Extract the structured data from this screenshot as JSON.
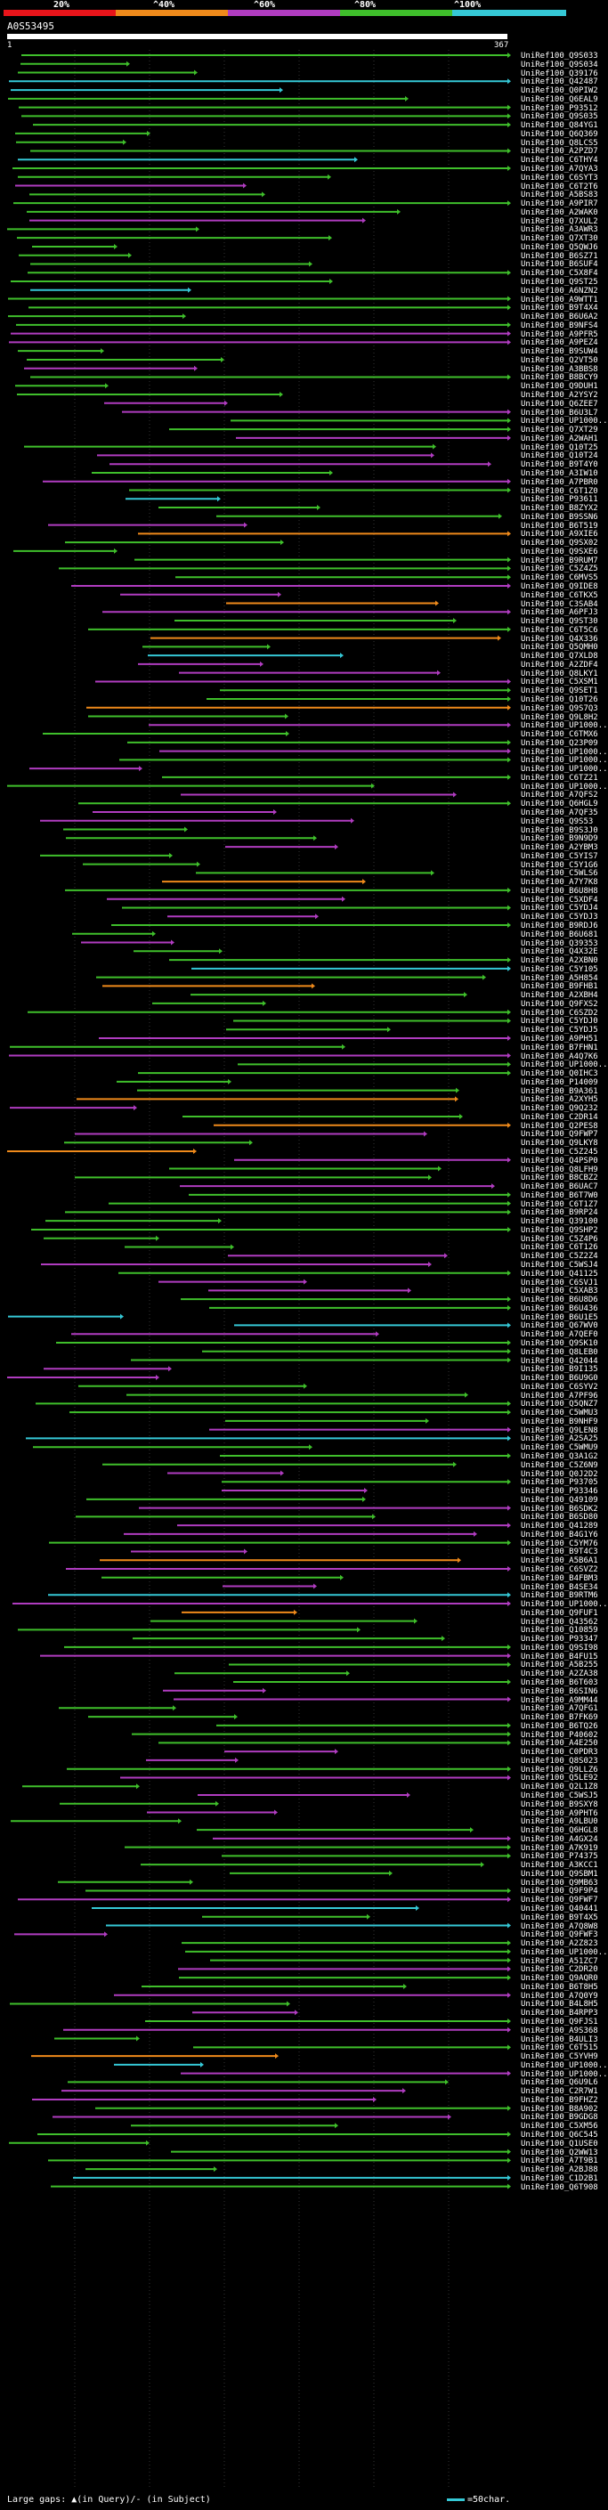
{
  "legend": {
    "labels": [
      {
        "text": "20%"
      },
      {
        "text": "^40%"
      },
      {
        "text": "^60%"
      },
      {
        "text": "^80%"
      },
      {
        "text": "^100%"
      }
    ],
    "colors": [
      "#e8141a",
      "#ef8a1b",
      "#b03cc0",
      "#3fbf2b",
      "#35c8d6"
    ]
  },
  "query": {
    "id": "A0S53495",
    "start": "1",
    "end": "367"
  },
  "footer": {
    "gaps_text": "Large gaps: ▲(in Query)/- (in Subject)",
    "scale_text": "=50char."
  },
  "hits": [
    "UniRef100_Q9S033",
    "UniRef100_Q9S034",
    "UniRef100_Q39176",
    "UniRef100_Q42487",
    "UniRef100_Q0PIW2",
    "UniRef100_Q6EAL9",
    "UniRef100_P93512",
    "UniRef100_Q9S035",
    "UniRef100_Q84YG1",
    "UniRef100_Q6Q369",
    "UniRef100_Q8LCS5",
    "UniRef100_A2PZD7",
    "UniRef100_C6THY4",
    "UniRef100_A7QYA3",
    "UniRef100_C6SYT3",
    "UniRef100_C6T2T6",
    "UniRef100_A5BS83",
    "UniRef100_A9PIR7",
    "UniRef100_A2WAK0",
    "UniRef100_Q7XUL2",
    "UniRef100_A3AWR3",
    "UniRef100_Q7XT30",
    "UniRef100_Q5QWJ6",
    "UniRef100_B6SZ71",
    "UniRef100_B6SUF4",
    "UniRef100_C5X8F4",
    "UniRef100_Q9ST25",
    "UniRef100_A6NZN2",
    "UniRef100_A9WTT1",
    "UniRef100_B9T4X4",
    "UniRef100_B6U6A2",
    "UniRef100_B9NFS4",
    "UniRef100_A9PFR5",
    "UniRef100_A9PEZ4",
    "UniRef100_B9SUW4",
    "UniRef100_Q2VT50",
    "UniRef100_A3BBS8",
    "UniRef100_B8BCY9",
    "UniRef100_Q9DUH1",
    "UniRef100_A2YSY2",
    "UniRef100_Q6ZEE7",
    "UniRef100_B6U3L7",
    "UniRef100_UP1000..",
    "UniRef100_Q7XT29",
    "UniRef100_A2WAH1",
    "UniRef100_Q10T25",
    "UniRef100_Q10T24",
    "UniRef100_B9T4Y0",
    "UniRef100_A3IW10",
    "UniRef100_A7PBR0",
    "UniRef100_C6T1Z0",
    "UniRef100_P93611",
    "UniRef100_B8ZYX2",
    "UniRef100_B9SSN6",
    "UniRef100_B6T519",
    "UniRef100_A9XIE6",
    "UniRef100_Q9SX02",
    "UniRef100_Q9SXE6",
    "UniRef100_B9RUM7",
    "UniRef100_C5Z4Z5",
    "UniRef100_C6MVS5",
    "UniRef100_Q9IDE8",
    "UniRef100_C6TKX5",
    "UniRef100_C3SAB4",
    "UniRef100_A6PFJ3",
    "UniRef100_Q9ST30",
    "UniRef100_C6T5C6",
    "UniRef100_Q4X336",
    "UniRef100_Q5QMH0",
    "UniRef100_Q7XLD8",
    "UniRef100_A2ZDF4",
    "UniRef100_Q8LKY1",
    "UniRef100_C5XSM1",
    "UniRef100_Q9SET1",
    "UniRef100_Q10T26",
    "UniRef100_Q9S7Q3",
    "UniRef100_Q9L8H2",
    "UniRef100_UP1000..",
    "UniRef100_C6TMX6",
    "UniRef100_Q23P09",
    "UniRef100_UP1000..",
    "UniRef100_UP1000..",
    "UniRef100_UP1000..",
    "UniRef100_C6TZ21",
    "UniRef100_UP1000..",
    "UniRef100_A7QFS2",
    "UniRef100_Q6HGL9",
    "UniRef100_A7QF35",
    "UniRef100_Q9S53",
    "UniRef100_B9S3J0",
    "UniRef100_B9N9D9",
    "UniRef100_A2YBM3",
    "UniRef100_C5YIS7",
    "UniRef100_C5Y1G6",
    "UniRef100_C5WLS6",
    "UniRef100_A7Y7K8",
    "UniRef100_B6U8H8",
    "UniRef100_C5XDF4",
    "UniRef100_C5YDJ4",
    "UniRef100_C5YDJ3",
    "UniRef100_B9RDJ6",
    "UniRef100_B6U681",
    "UniRef100_Q39353",
    "UniRef100_Q4X32E",
    "UniRef100_A2XBN0",
    "UniRef100_C5Y105",
    "UniRef100_A5H854",
    "UniRef100_B9FHB1",
    "UniRef100_A2XBH4",
    "UniRef100_Q9FXS2",
    "UniRef100_C6SZD2",
    "UniRef100_C5YDJ0",
    "UniRef100_C5YDJ5",
    "UniRef100_A9PH51",
    "UniRef100_B7FHN1",
    "UniRef100_A4Q7K6",
    "UniRef100_UP1000..",
    "UniRef100_Q0IHC3",
    "UniRef100_P14009",
    "UniRef100_B9A361",
    "UniRef100_A2XYH5",
    "UniRef100_Q9Q232",
    "UniRef100_C2DR14",
    "UniRef100_Q2PES8",
    "UniRef100_Q9FWP7",
    "UniRef100_Q9LKY8",
    "UniRef100_C5Z245",
    "UniRef100_Q4PSP0",
    "UniRef100_Q8LFH9",
    "UniRef100_B8CBZ2",
    "UniRef100_B6UAC7",
    "UniRef100_B6T7W0",
    "UniRef100_C6T1Z7",
    "UniRef100_B9RP24",
    "UniRef100_Q39100",
    "UniRef100_Q9SHP2",
    "UniRef100_C5Z4P6",
    "UniRef100_C6T126",
    "UniRef100_C5Z2Z4",
    "UniRef100_C5WSJ4",
    "UniRef100_Q41125",
    "UniRef100_C6SVJ1",
    "UniRef100_C5XAB3",
    "UniRef100_B6U8D6",
    "UniRef100_B6U436",
    "UniRef100_B6U1E5",
    "UniRef100_Q67WV0",
    "UniRef100_A7QEF0",
    "UniRef100_Q9SK10",
    "UniRef100_Q8LEB0",
    "UniRef100_Q42044",
    "UniRef100_B9I135",
    "UniRef100_B6U9G0",
    "UniRef100_C6SYV2",
    "UniRef100_A7PF96",
    "UniRef100_Q5QNZ7",
    "UniRef100_C5WMU3",
    "UniRef100_B9NHF9",
    "UniRef100_Q9LEN8",
    "UniRef100_A2SA25",
    "UniRef100_C5WMU9",
    "UniRef100_Q3A1G2",
    "UniRef100_C5Z6N9",
    "UniRef100_Q0J2D2",
    "UniRef100_P93705",
    "UniRef100_P93346",
    "UniRef100_Q49109",
    "UniRef100_B6SDK2",
    "UniRef100_B6SD80",
    "UniRef100_Q41289",
    "UniRef100_B4G1Y6",
    "UniRef100_C5YM76",
    "UniRef100_B9T4C3",
    "UniRef100_A5B6A1",
    "UniRef100_C6SVZ2",
    "UniRef100_B4FBM3",
    "UniRef100_B4SE34",
    "UniRef100_B9RTM6",
    "UniRef100_UP1000..",
    "UniRef100_Q9FUF1",
    "UniRef100_Q43562",
    "UniRef100_Q10859",
    "UniRef100_P93347",
    "UniRef100_Q9SI98",
    "UniRef100_B4FU15",
    "UniRef100_A5B255",
    "UniRef100_A2ZA38",
    "UniRef100_B6T603",
    "UniRef100_B6SIN6",
    "UniRef100_A9MM44",
    "UniRef100_A7QFG1",
    "UniRef100_B7FK69",
    "UniRef100_B6TQ26",
    "UniRef100_P40602",
    "UniRef100_A4E250",
    "UniRef100_C0PDR3",
    "UniRef100_Q8S023",
    "UniRef100_Q9LLZ6",
    "UniRef100_Q5LE92",
    "UniRef100_Q2L1Z8",
    "UniRef100_C5WSJ5",
    "UniRef100_B9SXY8",
    "UniRef100_A9PHT6",
    "UniRef100_A9LBU0",
    "UniRef100_Q6HGL8",
    "UniRef100_A4GX24",
    "UniRef100_A7K919",
    "UniRef100_P74375",
    "UniRef100_A3KCC1",
    "UniRef100_Q9SBM1",
    "UniRef100_Q9MB63",
    "UniRef100_Q9F9P4",
    "UniRef100_Q9FWF7",
    "UniRef100_Q40441",
    "UniRef100_B9T4X5",
    "UniRef100_A7Q8W8",
    "UniRef100_Q9FWF3",
    "UniRef100_A2Z823",
    "UniRef100_UP1000..",
    "UniRef100_A51ZC7",
    "UniRef100_C2DR20",
    "UniRef100_Q9AQR0",
    "UniRef100_B6T8H5",
    "UniRef100_A7Q0Y9",
    "UniRef100_B4L8H5",
    "UniRef100_B4RPP3",
    "UniRef100_Q9FJS1",
    "UniRef100_A9S368",
    "UniRef100_B4ULI3",
    "UniRef100_C6T515",
    "UniRef100_C5YVH9",
    "UniRef100_UP1000..",
    "UniRef100_UP1000..",
    "UniRef100_Q6U9L6",
    "UniRef100_C2R7W1",
    "UniRef100_B9FHZ2",
    "UniRef100_B8A902",
    "UniRef100_B9GDG8",
    "UniRef100_C5XM56",
    "UniRef100_Q6C545",
    "UniRef100_Q1USE0",
    "UniRef100_Q2WW13",
    "UniRef100_A7T9B1",
    "UniRef100_A2BJ88",
    "UniRef100_C1D2B1",
    "UniRef100_Q6T908"
  ]
}
